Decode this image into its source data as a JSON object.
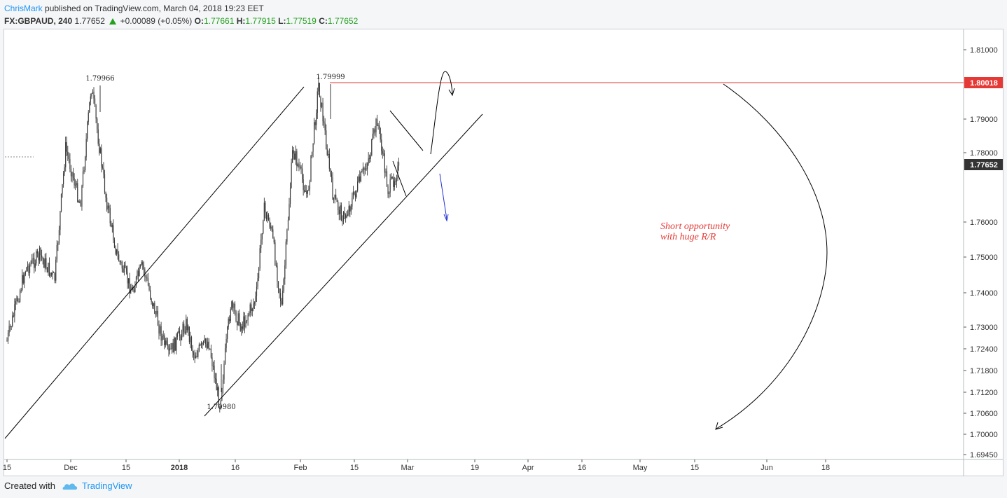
{
  "header": {
    "author": "ChrisMark",
    "published_text": "published on TradingView.com, March 04, 2018 19:23 EET"
  },
  "quote": {
    "symbol": "FX:GBPAUD, 240",
    "last": "1.77652",
    "change": "+0.00089 (+0.05%)",
    "open_label": "O:",
    "open": "1.77661",
    "high_label": "H:",
    "high": "1.77915",
    "low_label": "L:",
    "low": "1.77519",
    "close_label": "C:",
    "close": "1.77652",
    "up_color": "#26a020"
  },
  "footer": {
    "created_with": "Created with",
    "brand": "TradingView"
  },
  "chart_data": {
    "type": "candlestick",
    "symbol": "FX:GBPAUD",
    "timeframe": "240",
    "y_ticks": [
      "1.81000",
      "1.79000",
      "1.78000",
      "1.76000",
      "1.75000",
      "1.74000",
      "1.73000",
      "1.72400",
      "1.71800",
      "1.71200",
      "1.70600",
      "1.70000",
      "1.69450"
    ],
    "x_ticks": [
      "15",
      "Dec",
      "15",
      "2018",
      "16",
      "Feb",
      "15",
      "Mar",
      "19",
      "Apr",
      "16",
      "May",
      "15",
      "Jun",
      "18"
    ],
    "x_ticks_bold": [
      "2018"
    ],
    "price_labels": [
      {
        "value": "1.80018",
        "color": "#e53935"
      },
      {
        "value": "1.77652",
        "color": "#333333"
      }
    ],
    "swing_labels": [
      "1.79966",
      "1.79999",
      "1.70980"
    ],
    "annotation": [
      "Short opportunity",
      "with huge R/R"
    ],
    "annotation_color": "#e53935",
    "resistance_level": 1.80018,
    "last_price": 1.77652,
    "approx_path": [
      {
        "date": "2017-11-15",
        "price": 1.728
      },
      {
        "date": "2017-11-20",
        "price": 1.748
      },
      {
        "date": "2017-11-24",
        "price": 1.752
      },
      {
        "date": "2017-11-28",
        "price": 1.745
      },
      {
        "date": "2017-12-01",
        "price": 1.782
      },
      {
        "date": "2017-12-05",
        "price": 1.766
      },
      {
        "date": "2017-12-08",
        "price": 1.7996
      },
      {
        "date": "2017-12-12",
        "price": 1.768
      },
      {
        "date": "2017-12-15",
        "price": 1.752
      },
      {
        "date": "2017-12-19",
        "price": 1.742
      },
      {
        "date": "2017-12-22",
        "price": 1.749
      },
      {
        "date": "2017-12-27",
        "price": 1.73
      },
      {
        "date": "2017-12-29",
        "price": 1.724
      },
      {
        "date": "2018-01-03",
        "price": 1.733
      },
      {
        "date": "2018-01-05",
        "price": 1.724
      },
      {
        "date": "2018-01-09",
        "price": 1.728
      },
      {
        "date": "2018-01-12",
        "price": 1.71
      },
      {
        "date": "2018-01-15",
        "price": 1.738
      },
      {
        "date": "2018-01-18",
        "price": 1.732
      },
      {
        "date": "2018-01-22",
        "price": 1.74
      },
      {
        "date": "2018-01-24",
        "price": 1.765
      },
      {
        "date": "2018-01-26",
        "price": 1.76
      },
      {
        "date": "2018-01-29",
        "price": 1.737
      },
      {
        "date": "2018-02-01",
        "price": 1.782
      },
      {
        "date": "2018-02-05",
        "price": 1.768
      },
      {
        "date": "2018-02-08",
        "price": 1.7999
      },
      {
        "date": "2018-02-12",
        "price": 1.768
      },
      {
        "date": "2018-02-15",
        "price": 1.762
      },
      {
        "date": "2018-02-19",
        "price": 1.772
      },
      {
        "date": "2018-02-22",
        "price": 1.78
      },
      {
        "date": "2018-02-24",
        "price": 1.79
      },
      {
        "date": "2018-02-27",
        "price": 1.77
      },
      {
        "date": "2018-03-02",
        "price": 1.7765
      }
    ]
  }
}
